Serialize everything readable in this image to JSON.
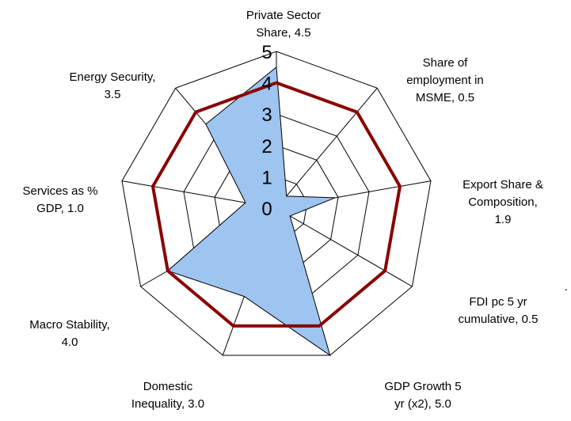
{
  "chart_data": {
    "type": "radar",
    "title": "",
    "axes": [
      {
        "lines": [
          "Private Sector",
          "Share, 4.5"
        ],
        "value": 4.5,
        "anchor": "middle"
      },
      {
        "lines": [
          "Share of",
          "employment in",
          "MSME, 0.5"
        ],
        "value": 0.5,
        "anchor": "middle"
      },
      {
        "lines": [
          "Export Share &",
          "Composition,",
          "1.9"
        ],
        "value": 1.9,
        "anchor": "middle"
      },
      {
        "lines": [
          "FDI pc 5 yr",
          "cumulative, 0.5"
        ],
        "value": 0.5,
        "anchor": "middle"
      },
      {
        "lines": [
          "GDP Growth 5",
          "yr (x2), 5.0"
        ],
        "value": 5.0,
        "anchor": "middle"
      },
      {
        "lines": [
          "Domestic",
          "Inequality, 3.0"
        ],
        "value": 3.0,
        "anchor": "middle"
      },
      {
        "lines": [
          "Macro Stability,",
          "4.0"
        ],
        "value": 4.0,
        "anchor": "middle"
      },
      {
        "lines": [
          "Services as %",
          "GDP, 1.0"
        ],
        "value": 1.0,
        "anchor": "middle"
      },
      {
        "lines": [
          "Energy Security,",
          "3.5"
        ],
        "value": 3.5,
        "anchor": "middle"
      }
    ],
    "ticks": [
      "0",
      "1",
      "2",
      "3",
      "4",
      "5"
    ],
    "rmax": 5,
    "series": [
      {
        "kind": "area",
        "color": "#9ec4f0",
        "values": [
          4.5,
          0.5,
          1.9,
          0.5,
          5.0,
          3.0,
          4.0,
          1.0,
          3.5
        ]
      },
      {
        "kind": "line",
        "color": "#8b0000",
        "values": [
          4,
          4,
          4,
          4,
          4,
          4,
          4,
          4,
          4
        ]
      }
    ],
    "stray_mark": "."
  }
}
